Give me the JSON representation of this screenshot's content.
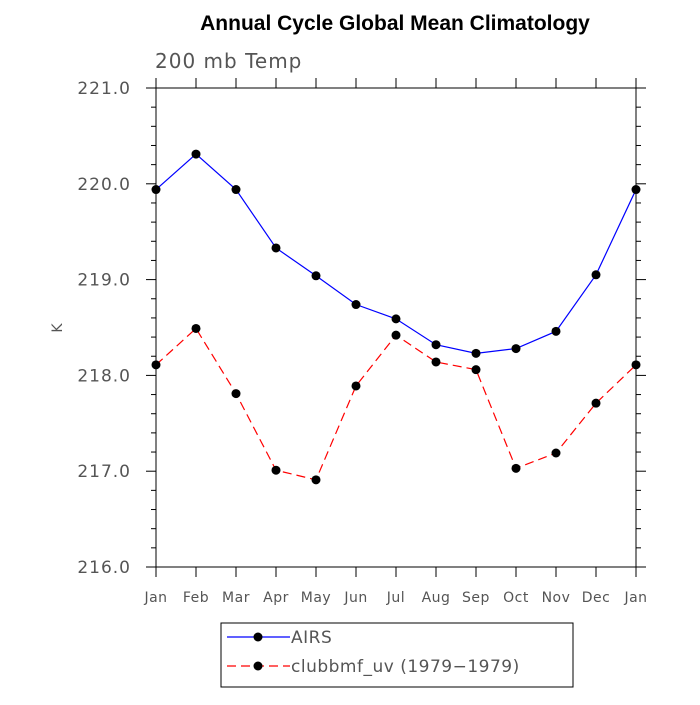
{
  "chart_data": {
    "type": "line",
    "title": "Annual Cycle Global Mean Climatology",
    "subtitle": "200 mb Temp",
    "xlabel": "",
    "ylabel": "K",
    "categories": [
      "Jan",
      "Feb",
      "Mar",
      "Apr",
      "May",
      "Jun",
      "Jul",
      "Aug",
      "Sep",
      "Oct",
      "Nov",
      "Dec",
      "Jan"
    ],
    "ylim": [
      216.0,
      221.0
    ],
    "yticks": [
      "216.0",
      "217.0",
      "218.0",
      "219.0",
      "220.0",
      "221.0"
    ],
    "series": [
      {
        "name": "AIRS",
        "color": "#0000ff",
        "line_style": "solid",
        "values": [
          219.94,
          220.31,
          219.94,
          219.33,
          219.04,
          218.74,
          218.59,
          218.32,
          218.23,
          218.28,
          218.46,
          219.05,
          219.94
        ]
      },
      {
        "name": "clubbmf_uv (1979−1979)",
        "color": "#ff0000",
        "line_style": "dashed",
        "values": [
          218.11,
          218.49,
          217.81,
          217.01,
          216.91,
          217.89,
          218.42,
          218.14,
          218.06,
          217.03,
          217.19,
          217.71,
          218.11
        ]
      }
    ],
    "grid": false,
    "legend_position": "bottom"
  }
}
